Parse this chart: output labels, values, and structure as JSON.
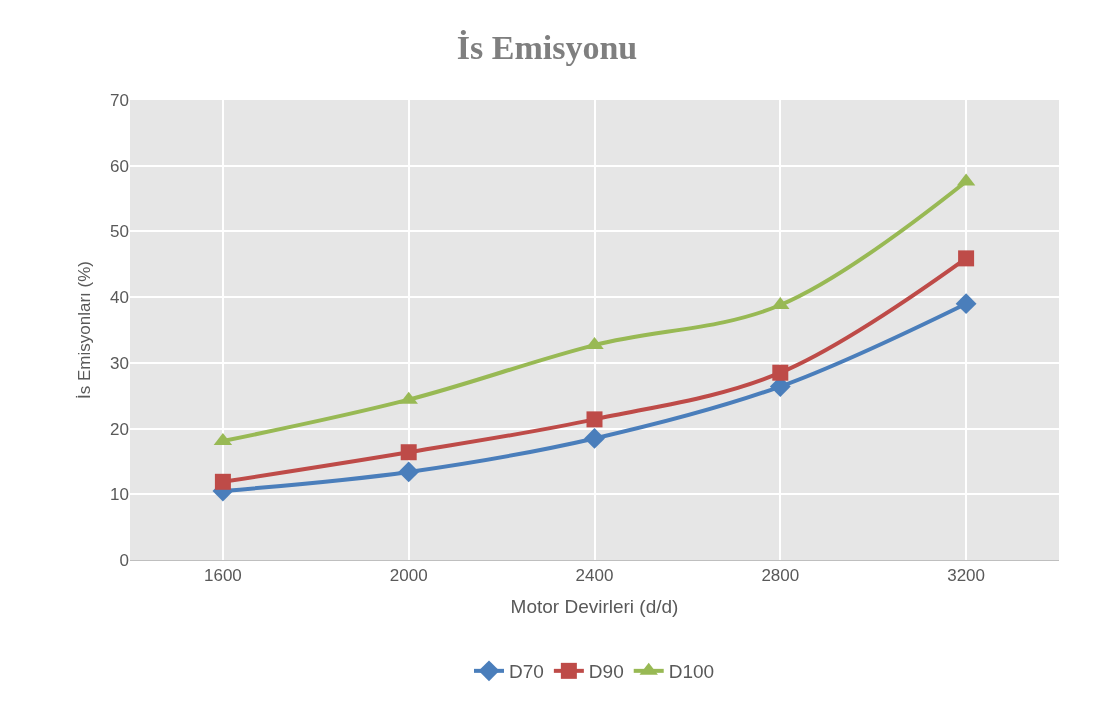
{
  "chart_data": {
    "type": "line",
    "title": "İs Emisyonu",
    "xlabel": "Motor Devirleri (d/d)",
    "ylabel": "İs Emisyonları (%)",
    "categories": [
      "1600",
      "2000",
      "2400",
      "2800",
      "3200"
    ],
    "series": [
      {
        "name": "D70",
        "color": "#4a7ebb",
        "marker": "diamond",
        "values": [
          10.5,
          13.4,
          18.5,
          26.4,
          39.0
        ]
      },
      {
        "name": "D90",
        "color": "#be4b48",
        "marker": "square",
        "values": [
          11.9,
          16.4,
          21.4,
          28.5,
          45.9
        ]
      },
      {
        "name": "D100",
        "color": "#98b954",
        "marker": "triangle",
        "values": [
          18.1,
          24.4,
          32.7,
          38.8,
          57.6
        ]
      }
    ],
    "ylim": [
      0,
      70
    ],
    "yticks": [
      0,
      10,
      20,
      30,
      40,
      50,
      60,
      70
    ],
    "grid": true,
    "legend": "bottom",
    "line_style": "solid"
  }
}
